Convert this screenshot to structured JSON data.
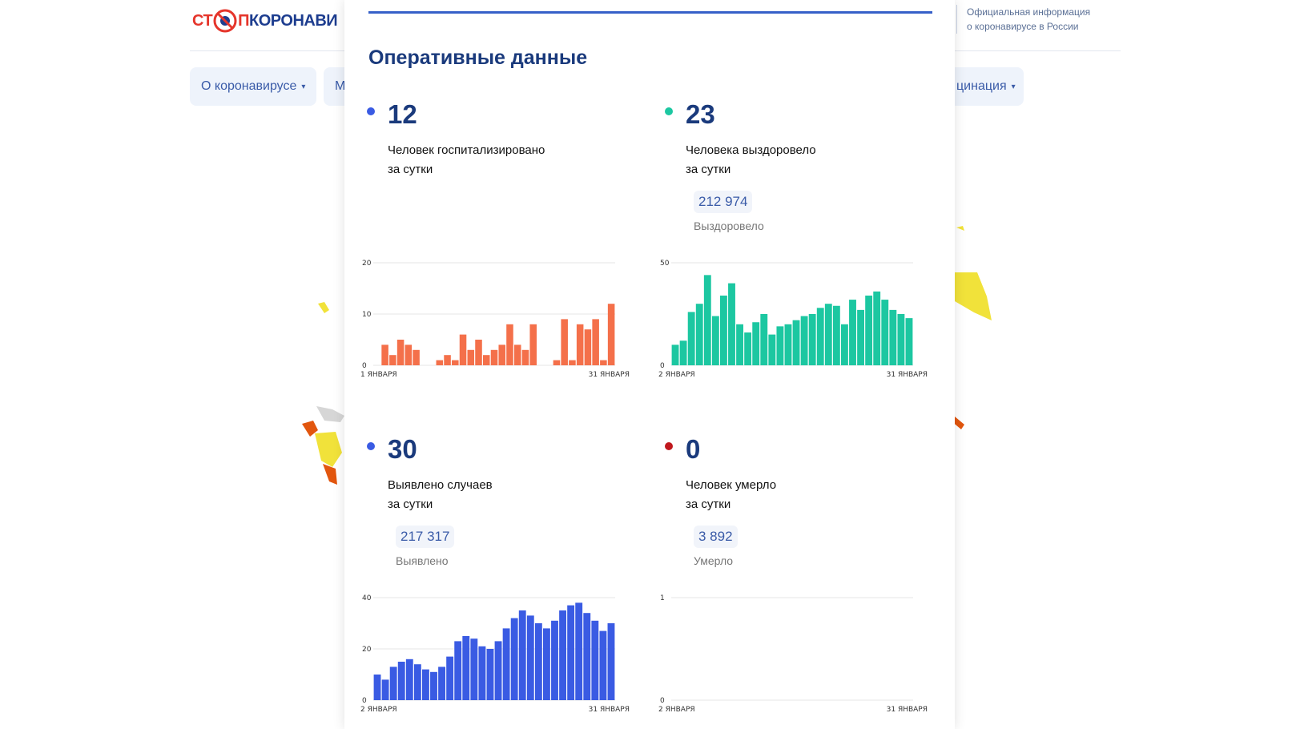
{
  "site": {
    "logo": {
      "part1": "СТ",
      "part2": "П",
      "part3": "КОРОНАВИ"
    },
    "info_line1": "Официальная информация",
    "info_line2": "о коронавирусе в России",
    "nav": [
      {
        "label": "О коронавирусе",
        "caret": "▾"
      },
      {
        "label": "М"
      },
      {
        "label": "цинация",
        "caret": "▾"
      }
    ]
  },
  "panel": {
    "title": "Оперативные данные",
    "colors": {
      "hospitalized": "#f4704a",
      "recovered": "#1cc7a1",
      "cases": "#3a5be3",
      "deaths": "#c0181d",
      "dot_hosp": "#3a5be3"
    },
    "blocks": [
      {
        "value": "12",
        "desc": "Человек госпитализировано\nза сутки",
        "dot_color": "#3a5be3"
      },
      {
        "value": "23",
        "desc": "Человека выздоровело\nза сутки",
        "total": "212 974",
        "total_label": "Выздоровело",
        "dot_color": "#1cc7a1"
      },
      {
        "value": "30",
        "desc": "Выявлено случаев\nза сутки",
        "total": "217 317",
        "total_label": "Выявлено",
        "dot_color": "#3a5be3"
      },
      {
        "value": "0",
        "desc": "Человек умерло\nза сутки",
        "total": "3 892",
        "total_label": "Умерло",
        "dot_color": "#c0181d"
      }
    ]
  },
  "chart_data": [
    {
      "type": "bar",
      "title": "",
      "color": "#f4704a",
      "x_start_label": "1 ЯНВАРЯ",
      "x_end_label": "31 ЯНВАРЯ",
      "yticks": [
        0,
        10,
        20
      ],
      "ylim": [
        0,
        20
      ],
      "values": [
        0,
        4,
        2,
        5,
        4,
        3,
        0,
        0,
        1,
        2,
        1,
        6,
        3,
        5,
        2,
        3,
        4,
        8,
        4,
        3,
        8,
        0,
        0,
        1,
        9,
        1,
        8,
        7,
        9,
        1,
        12
      ]
    },
    {
      "type": "bar",
      "title": "",
      "color": "#1cc7a1",
      "x_start_label": "2 ЯНВАРЯ",
      "x_end_label": "31 ЯНВАРЯ",
      "yticks": [
        0,
        50
      ],
      "ylim": [
        0,
        50
      ],
      "values": [
        10,
        12,
        26,
        30,
        44,
        24,
        34,
        40,
        20,
        16,
        21,
        25,
        15,
        19,
        20,
        22,
        24,
        25,
        28,
        30,
        29,
        20,
        32,
        27,
        34,
        36,
        32,
        27,
        25,
        23
      ]
    },
    {
      "type": "bar",
      "title": "",
      "color": "#3a5be3",
      "x_start_label": "2 ЯНВАРЯ",
      "x_end_label": "31 ЯНВАРЯ",
      "yticks": [
        0,
        20,
        40
      ],
      "ylim": [
        0,
        40
      ],
      "values": [
        10,
        8,
        13,
        15,
        16,
        14,
        12,
        11,
        13,
        17,
        23,
        25,
        24,
        21,
        20,
        23,
        28,
        32,
        35,
        33,
        30,
        28,
        31,
        35,
        37,
        38,
        34,
        31,
        27,
        30
      ]
    },
    {
      "type": "bar",
      "title": "",
      "color": "#c0181d",
      "x_start_label": "2 ЯНВАРЯ",
      "x_end_label": "31 ЯНВАРЯ",
      "yticks": [
        0,
        1
      ],
      "ylim": [
        0,
        1
      ],
      "values": [
        0,
        0,
        0,
        0,
        0,
        0,
        0,
        0,
        0,
        0,
        0,
        0,
        0,
        0,
        0,
        0,
        0,
        0,
        0,
        0,
        0,
        0,
        0,
        0,
        0,
        0,
        0,
        0,
        0,
        0
      ]
    }
  ]
}
